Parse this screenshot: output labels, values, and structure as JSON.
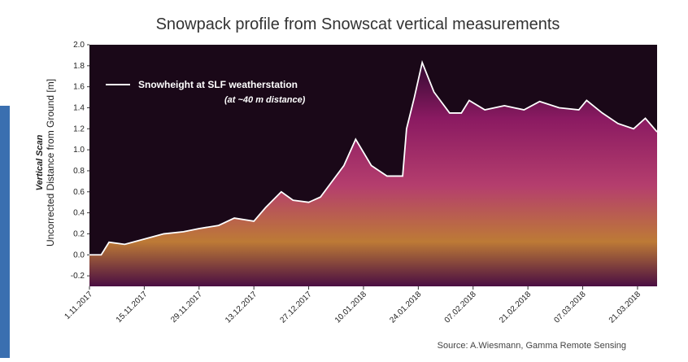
{
  "chart_data": {
    "type": "line",
    "title": "Snowpack profile from Snowscat vertical measurements",
    "y_label_top": "Vertical Scan",
    "y_label": "Uncorrected Distance from Ground [m]",
    "legend_note": "(at ~40 m distance)",
    "source": "Source: A.Wiesmann, Gamma Remote Sensing",
    "x": [
      "2017-11-01",
      "2017-11-04",
      "2017-11-06",
      "2017-11-10",
      "2017-11-15",
      "2017-11-20",
      "2017-11-25",
      "2017-11-29",
      "2017-12-04",
      "2017-12-08",
      "2017-12-13",
      "2017-12-16",
      "2017-12-20",
      "2017-12-23",
      "2017-12-27",
      "2017-12-30",
      "2018-01-02",
      "2018-01-05",
      "2018-01-08",
      "2018-01-12",
      "2018-01-16",
      "2018-01-20",
      "2018-01-21",
      "2018-01-23",
      "2018-01-25",
      "2018-01-28",
      "2018-02-01",
      "2018-02-04",
      "2018-02-06",
      "2018-02-10",
      "2018-02-15",
      "2018-02-20",
      "2018-02-24",
      "2018-03-01",
      "2018-03-06",
      "2018-03-08",
      "2018-03-12",
      "2018-03-16",
      "2018-03-20",
      "2018-03-23",
      "2018-03-26"
    ],
    "series": [
      {
        "name": "Snowheight at SLF weatherstation",
        "color": "#ffffff",
        "values": [
          0.0,
          0.0,
          0.12,
          0.1,
          0.15,
          0.2,
          0.22,
          0.25,
          0.28,
          0.35,
          0.32,
          0.45,
          0.6,
          0.52,
          0.5,
          0.55,
          0.7,
          0.85,
          1.1,
          0.85,
          0.75,
          0.75,
          1.2,
          1.5,
          1.83,
          1.55,
          1.35,
          1.35,
          1.47,
          1.38,
          1.42,
          1.38,
          1.46,
          1.4,
          1.38,
          1.47,
          1.35,
          1.25,
          1.2,
          1.3,
          1.17
        ]
      }
    ],
    "xlim": [
      "2017-11-01",
      "2018-03-26"
    ],
    "xticks": [
      {
        "value": "2017-11-01",
        "label": "1.11.2017"
      },
      {
        "value": "2017-11-15",
        "label": "15.11.2017"
      },
      {
        "value": "2017-11-29",
        "label": "29.11.2017"
      },
      {
        "value": "2017-12-13",
        "label": "13.12.2017"
      },
      {
        "value": "2017-12-27",
        "label": "27.12.2017"
      },
      {
        "value": "2018-01-10",
        "label": "10.01.2018"
      },
      {
        "value": "2018-01-24",
        "label": "24.01.2018"
      },
      {
        "value": "2018-02-07",
        "label": "07.02.2018"
      },
      {
        "value": "2018-02-21",
        "label": "21.02.2018"
      },
      {
        "value": "2018-03-07",
        "label": "07.03.2018"
      },
      {
        "value": "2018-03-21",
        "label": "21.03.2018"
      }
    ],
    "ylim": [
      -0.3,
      2.0
    ],
    "yticks": [
      -0.2,
      {
        "value": 0,
        "label": "0.0"
      },
      0.2,
      0.4,
      0.6,
      0.8,
      {
        "value": 1,
        "label": "1.0"
      },
      1.2,
      1.4,
      1.6,
      1.8,
      {
        "value": 2,
        "label": "2.0"
      }
    ]
  }
}
